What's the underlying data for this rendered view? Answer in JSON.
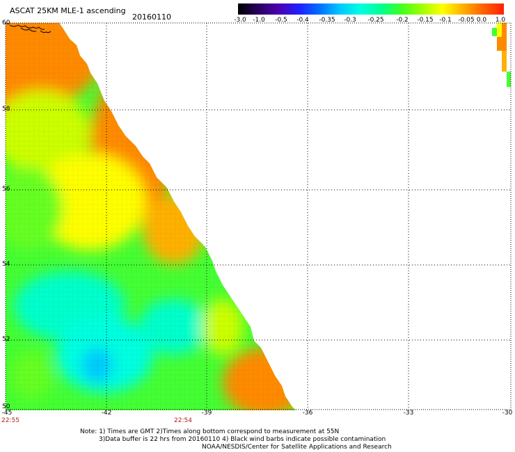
{
  "header": {
    "title": "ASCAT 25KM MLE-1 ascending",
    "date": "20160110"
  },
  "colorbar": {
    "labels": [
      "-3.0",
      "-1.0",
      "-0.5",
      "-0.4",
      "-0.35",
      "-0.3",
      "-0.25",
      "-0.2",
      "-0.15",
      "-0.1",
      "-0.05",
      "0.0",
      "1.0"
    ],
    "colors": [
      "#000000",
      "#2a0060",
      "#4b00b0",
      "#2020ff",
      "#0070ff",
      "#00c8ff",
      "#00ffe0",
      "#00ff90",
      "#40ff20",
      "#a0ff00",
      "#ffff00",
      "#ffb000",
      "#ff6000",
      "#ff2000"
    ]
  },
  "axes": {
    "y_labels": [
      "60",
      "58",
      "56",
      "54",
      "52",
      "50"
    ],
    "x_labels": [
      "-45",
      "-42",
      "-39",
      "-36",
      "-33",
      "-30"
    ]
  },
  "times": [
    "22:55",
    "22:54"
  ],
  "notes": [
    "Note: 1) Times are GMT 2)Times along bottom correspond to measurement at 55N",
    "3)Data buffer is 22 hrs from 20160110 4) Black wind barbs indicate possible contamination",
    "NOAA/NESDIS/Center for Satellite Applications and Research"
  ]
}
